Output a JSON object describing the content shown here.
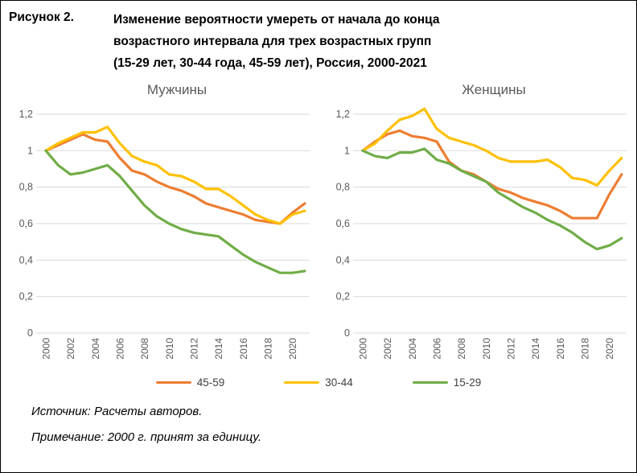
{
  "figure": {
    "label": "Рисунок 2.",
    "title_lines": [
      "Изменение вероятности умереть от начала до конца",
      "возрастного интервала для трех возрастных групп",
      "(15-29 лет, 30-44 года, 45-59 лет), Россия, 2000-2021"
    ]
  },
  "colors": {
    "orange": "#ED7D31",
    "yellow": "#FFC000",
    "green": "#70AD47",
    "grid": "#D9D9D9",
    "axis_text": "#595959"
  },
  "legend": {
    "items": [
      {
        "label": "45-59",
        "color": "#ED7D31"
      },
      {
        "label": "30-44",
        "color": "#FFC000"
      },
      {
        "label": "15-29",
        "color": "#70AD47"
      }
    ]
  },
  "footer": {
    "source": "Источник: Расчеты авторов.",
    "note": "Примечание: 2000 г. принят за единицу."
  },
  "chart_data": [
    {
      "type": "line",
      "title": "Мужчины",
      "x": [
        2000,
        2001,
        2002,
        2003,
        2004,
        2005,
        2006,
        2007,
        2008,
        2009,
        2010,
        2011,
        2012,
        2013,
        2014,
        2015,
        2016,
        2017,
        2018,
        2019,
        2020,
        2021
      ],
      "x_tick_labels": [
        "2000",
        "2002",
        "2004",
        "2006",
        "2008",
        "2010",
        "2012",
        "2014",
        "2016",
        "2018",
        "2020"
      ],
      "y_tick_labels": [
        "0",
        "0,2",
        "0,4",
        "0,6",
        "0,8",
        "1",
        "1,2"
      ],
      "ylim": [
        0,
        1.2
      ],
      "grid": true,
      "series": [
        {
          "name": "45-59",
          "color": "#ED7D31",
          "values": [
            1.0,
            1.03,
            1.06,
            1.09,
            1.06,
            1.05,
            0.96,
            0.89,
            0.87,
            0.83,
            0.8,
            0.78,
            0.75,
            0.71,
            0.69,
            0.67,
            0.65,
            0.62,
            0.61,
            0.6,
            0.66,
            0.71
          ]
        },
        {
          "name": "30-44",
          "color": "#FFC000",
          "values": [
            1.0,
            1.04,
            1.07,
            1.1,
            1.1,
            1.13,
            1.04,
            0.97,
            0.94,
            0.92,
            0.87,
            0.86,
            0.83,
            0.79,
            0.79,
            0.75,
            0.7,
            0.65,
            0.62,
            0.6,
            0.65,
            0.67
          ]
        },
        {
          "name": "15-29",
          "color": "#70AD47",
          "values": [
            1.0,
            0.92,
            0.87,
            0.88,
            0.9,
            0.92,
            0.86,
            0.78,
            0.7,
            0.64,
            0.6,
            0.57,
            0.55,
            0.54,
            0.53,
            0.48,
            0.43,
            0.39,
            0.36,
            0.33,
            0.33,
            0.34
          ]
        }
      ]
    },
    {
      "type": "line",
      "title": "Женщины",
      "x": [
        2000,
        2001,
        2002,
        2003,
        2004,
        2005,
        2006,
        2007,
        2008,
        2009,
        2010,
        2011,
        2012,
        2013,
        2014,
        2015,
        2016,
        2017,
        2018,
        2019,
        2020,
        2021
      ],
      "x_tick_labels": [
        "2000",
        "2002",
        "2004",
        "2006",
        "2008",
        "2010",
        "2012",
        "2014",
        "2016",
        "2018",
        "2020"
      ],
      "y_tick_labels": [
        "0",
        "0,2",
        "0,4",
        "0,6",
        "0,8",
        "1",
        "1,2"
      ],
      "ylim": [
        0,
        1.2
      ],
      "grid": true,
      "series": [
        {
          "name": "45-59",
          "color": "#ED7D31",
          "values": [
            1.0,
            1.05,
            1.09,
            1.11,
            1.08,
            1.07,
            1.05,
            0.94,
            0.89,
            0.87,
            0.83,
            0.79,
            0.77,
            0.74,
            0.72,
            0.7,
            0.67,
            0.63,
            0.63,
            0.63,
            0.76,
            0.87
          ]
        },
        {
          "name": "30-44",
          "color": "#FFC000",
          "values": [
            1.0,
            1.04,
            1.11,
            1.17,
            1.19,
            1.23,
            1.12,
            1.07,
            1.05,
            1.03,
            1.0,
            0.96,
            0.94,
            0.94,
            0.94,
            0.95,
            0.91,
            0.85,
            0.84,
            0.81,
            0.89,
            0.96
          ]
        },
        {
          "name": "15-29",
          "color": "#70AD47",
          "values": [
            1.0,
            0.97,
            0.96,
            0.99,
            0.99,
            1.01,
            0.95,
            0.93,
            0.89,
            0.86,
            0.83,
            0.77,
            0.73,
            0.69,
            0.66,
            0.62,
            0.59,
            0.55,
            0.5,
            0.46,
            0.48,
            0.52
          ]
        }
      ]
    }
  ]
}
